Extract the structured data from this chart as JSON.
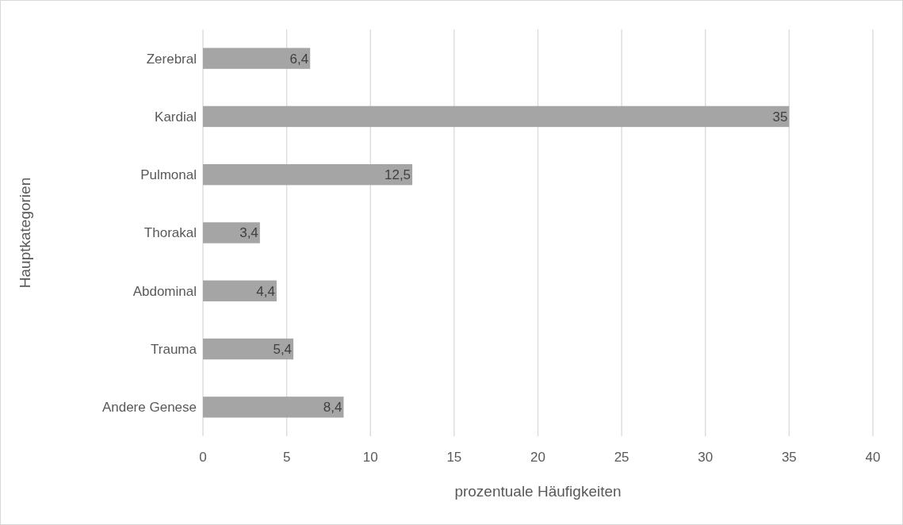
{
  "chart_data": {
    "type": "bar",
    "orientation": "horizontal",
    "xlabel": "prozentuale Häufigkeiten",
    "ylabel": "Hauptkategorien",
    "categories": [
      "Zerebral",
      "Kardial",
      "Pulmonal",
      "Thorakal",
      "Abdominal",
      "Trauma",
      "Andere Genese"
    ],
    "values": [
      6.4,
      35,
      12.5,
      3.4,
      4.4,
      5.4,
      8.4
    ],
    "value_labels": [
      "6,4",
      "35",
      "12,5",
      "3,4",
      "4,4",
      "5,4",
      "8,4"
    ],
    "color": "#a5a5a5",
    "xlim": [
      0,
      40
    ],
    "xticks": [
      0,
      5,
      10,
      15,
      20,
      25,
      30,
      35,
      40
    ],
    "grid": "x"
  }
}
